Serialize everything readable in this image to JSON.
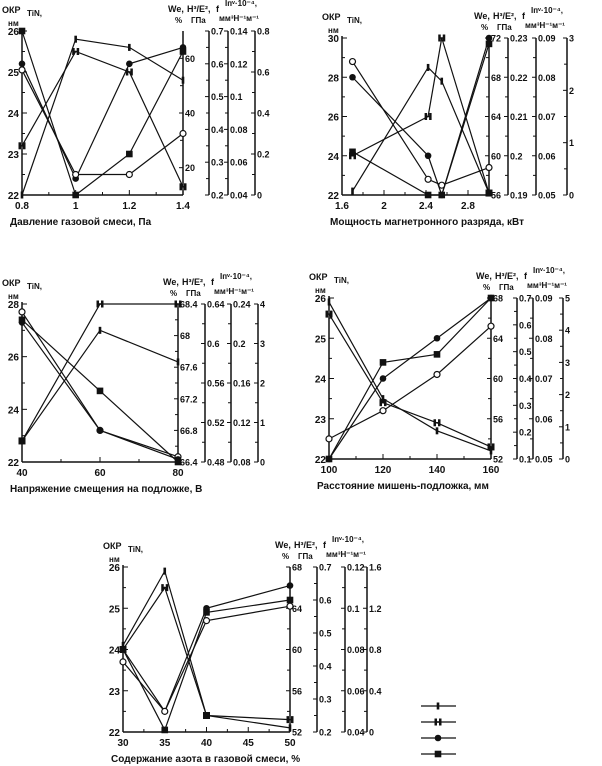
{
  "header_labels": {
    "okp": "ОКР",
    "okp_sub": "TiN,",
    "okp_unit": "нм",
    "we": "We,",
    "we_unit": "%",
    "h": "H³/E²,",
    "h_unit": "ГПа",
    "f": "f",
    "i": "Iпᵛ·10⁻⁴,",
    "i_unit": "мм³Н⁻¹м⁻¹"
  },
  "legend_markers": [
    "tick",
    "H",
    "filled-circle",
    "filled-square"
  ],
  "chart_data": [
    {
      "type": "line",
      "xlabel": "Давление газовой смеси, Па",
      "xlim": [
        0.8,
        1.4
      ],
      "xticks": [
        "0.8",
        "1",
        "1.2",
        "1.4"
      ],
      "ylim": [
        22,
        26
      ],
      "yticks": [
        "22",
        "23",
        "24",
        "25",
        "26"
      ],
      "right_axes": [
        {
          "name": "We",
          "lim": [
            10,
            70
          ],
          "ticks": [
            "20",
            "40",
            "60"
          ]
        },
        {
          "name": "H3/E2",
          "lim": [
            0.2,
            0.7
          ],
          "ticks": [
            "0.2",
            "0.3",
            "0.4",
            "0.5",
            "0.6",
            "0.7"
          ]
        },
        {
          "name": "f",
          "lim": [
            0.04,
            0.14
          ],
          "ticks": [
            "0.04",
            "0.06",
            "0.08",
            "0.1",
            "0.12",
            "0.14"
          ]
        },
        {
          "name": "Iv",
          "lim": [
            0,
            0.8
          ],
          "ticks": [
            "0",
            "0.2",
            "0.4",
            "0.6",
            "0.8"
          ]
        }
      ],
      "note": "series y values expressed on the left-axis (ОКР) scale",
      "series": [
        {
          "marker": "tick",
          "x": [
            0.8,
            1,
            1.2,
            1.4
          ],
          "y": [
            22.0,
            25.8,
            25.6,
            24.8
          ]
        },
        {
          "marker": "H",
          "x": [
            0.8,
            1,
            1.2,
            1.4
          ],
          "y": [
            23.2,
            25.5,
            25.0,
            22.2
          ]
        },
        {
          "marker": "filled-circle",
          "x": [
            0.8,
            1,
            1.2,
            1.4
          ],
          "y": [
            25.2,
            22.4,
            25.2,
            25.6
          ]
        },
        {
          "marker": "open-circle",
          "x": [
            0.8,
            1,
            1.2,
            1.4
          ],
          "y": [
            25.05,
            22.5,
            22.5,
            23.5
          ]
        },
        {
          "marker": "filled-square",
          "x": [
            0.8,
            1,
            1.2,
            1.4
          ],
          "y": [
            26.0,
            22.0,
            23.0,
            25.5
          ]
        }
      ]
    },
    {
      "type": "line",
      "xlabel": "Мощность магнетронного разряда, кВт",
      "xlim": [
        1.6,
        3.0
      ],
      "xticks": [
        "1.6",
        "2",
        "2.4",
        "2.8"
      ],
      "xtick_values": [
        1.6,
        2,
        2.4,
        2.8
      ],
      "ylim": [
        22,
        30
      ],
      "yticks": [
        "22",
        "24",
        "26",
        "28",
        "30"
      ],
      "right_axes": [
        {
          "name": "We",
          "lim": [
            56,
            72
          ],
          "ticks": [
            "56",
            "60",
            "64",
            "68",
            "72"
          ]
        },
        {
          "name": "H3/E2",
          "lim": [
            0.19,
            0.23
          ],
          "ticks": [
            "0.19",
            "0.2",
            "0.21",
            "0.22",
            "0.23"
          ]
        },
        {
          "name": "f",
          "lim": [
            0.05,
            0.09
          ],
          "ticks": [
            "0.05",
            "0.06",
            "0.07",
            "0.08",
            "0.09"
          ]
        },
        {
          "name": "Iv",
          "lim": [
            0,
            3
          ],
          "ticks": [
            "0",
            "1",
            "2",
            "3"
          ]
        }
      ],
      "series": [
        {
          "marker": "tick",
          "x": [
            1.7,
            2.42,
            2.55,
            3.0
          ],
          "y": [
            22.2,
            28.5,
            27.8,
            22.1
          ]
        },
        {
          "marker": "H",
          "x": [
            1.7,
            2.42,
            2.55,
            3.0
          ],
          "y": [
            24.0,
            26.0,
            30.0,
            22.1
          ]
        },
        {
          "marker": "filled-circle",
          "x": [
            1.7,
            2.42,
            2.55,
            3.0
          ],
          "y": [
            28.0,
            24.0,
            22.0,
            30.0
          ]
        },
        {
          "marker": "open-circle",
          "x": [
            1.7,
            2.42,
            2.55,
            3.0
          ],
          "y": [
            28.8,
            22.8,
            22.5,
            23.4
          ]
        },
        {
          "marker": "filled-square",
          "x": [
            1.7,
            2.42,
            2.55,
            3.0
          ],
          "y": [
            24.2,
            22.0,
            22.0,
            29.7
          ]
        }
      ]
    },
    {
      "type": "line",
      "xlabel": "Напряжение смещения на подложке, В",
      "xlim": [
        40,
        80
      ],
      "xticks": [
        "40",
        "60",
        "80"
      ],
      "ylim": [
        22,
        28
      ],
      "yticks": [
        "22",
        "24",
        "26",
        "28"
      ],
      "right_axes": [
        {
          "name": "We",
          "lim": [
            66.4,
            68.4
          ],
          "ticks": [
            "66.4",
            "66.8",
            "67.2",
            "67.6",
            "68",
            "68.4"
          ]
        },
        {
          "name": "H3/E2",
          "lim": [
            0.48,
            0.64
          ],
          "ticks": [
            "0.48",
            "0.52",
            "0.56",
            "0.6",
            "0.64"
          ]
        },
        {
          "name": "f",
          "lim": [
            0.08,
            0.24
          ],
          "ticks": [
            "0.08",
            "0.12",
            "0.16",
            "0.2",
            "0.24"
          ]
        },
        {
          "name": "Iv",
          "lim": [
            0,
            4
          ],
          "ticks": [
            "0",
            "1",
            "2",
            "3",
            "4"
          ]
        }
      ],
      "series": [
        {
          "marker": "H",
          "x": [
            40,
            60,
            80
          ],
          "y": [
            22.8,
            28.0,
            28.0
          ]
        },
        {
          "marker": "tick",
          "x": [
            40,
            60,
            80
          ],
          "y": [
            22.8,
            27.0,
            25.8
          ]
        },
        {
          "marker": "open-circle",
          "x": [
            40,
            60,
            80
          ],
          "y": [
            27.7,
            23.2,
            22.2
          ]
        },
        {
          "marker": "filled-circle",
          "x": [
            40,
            60,
            80
          ],
          "y": [
            27.3,
            23.2,
            22.1
          ]
        },
        {
          "marker": "filled-square",
          "x": [
            40,
            60,
            80
          ],
          "y": [
            27.4,
            24.7,
            22.0
          ]
        }
      ]
    },
    {
      "type": "line",
      "xlabel": "Расстояние мишень-подложка, мм",
      "xlim": [
        100,
        160
      ],
      "xticks": [
        "100",
        "120",
        "140",
        "160"
      ],
      "ylim": [
        22,
        26
      ],
      "yticks": [
        "22",
        "23",
        "24",
        "25",
        "26"
      ],
      "right_axes": [
        {
          "name": "We",
          "lim": [
            52,
            68
          ],
          "ticks": [
            "52",
            "56",
            "60",
            "64",
            "68"
          ]
        },
        {
          "name": "H3/E2",
          "lim": [
            0.1,
            0.7
          ],
          "ticks": [
            "0.1",
            "0.2",
            "0.3",
            "0.4",
            "0.5",
            "0.6",
            "0.7"
          ]
        },
        {
          "name": "f",
          "lim": [
            0.05,
            0.09
          ],
          "ticks": [
            "0.05",
            "0.06",
            "0.07",
            "0.08",
            "0.09"
          ]
        },
        {
          "name": "Iv",
          "lim": [
            0,
            5
          ],
          "ticks": [
            "0",
            "1",
            "2",
            "3",
            "4",
            "5"
          ]
        }
      ],
      "series": [
        {
          "marker": "tick",
          "x": [
            100,
            120,
            140,
            160
          ],
          "y": [
            25.9,
            23.5,
            22.7,
            22.2
          ]
        },
        {
          "marker": "H",
          "x": [
            100,
            120,
            140,
            160
          ],
          "y": [
            25.6,
            23.4,
            22.9,
            22.3
          ]
        },
        {
          "marker": "filled-circle",
          "x": [
            100,
            120,
            140,
            160
          ],
          "y": [
            22.0,
            24.0,
            25.0,
            26.0
          ]
        },
        {
          "marker": "filled-square",
          "x": [
            100,
            120,
            140,
            160
          ],
          "y": [
            22.0,
            24.4,
            24.6,
            26.0
          ]
        },
        {
          "marker": "open-circle",
          "x": [
            100,
            120,
            140,
            160
          ],
          "y": [
            22.5,
            23.2,
            24.1,
            25.3
          ]
        }
      ]
    },
    {
      "type": "line",
      "xlabel": "Содержание азота в газовой смеси, %",
      "xlim": [
        30,
        50
      ],
      "xticks": [
        "30",
        "35",
        "40",
        "45",
        "50"
      ],
      "ylim": [
        22,
        26
      ],
      "yticks": [
        "22",
        "23",
        "24",
        "25",
        "26"
      ],
      "right_axes": [
        {
          "name": "We",
          "lim": [
            52,
            68
          ],
          "ticks": [
            "52",
            "56",
            "60",
            "64",
            "68"
          ]
        },
        {
          "name": "H3/E2",
          "lim": [
            0.2,
            0.7
          ],
          "ticks": [
            "0.2",
            "0.3",
            "0.4",
            "0.5",
            "0.6",
            "0.7"
          ]
        },
        {
          "name": "f",
          "lim": [
            0.04,
            0.12
          ],
          "ticks": [
            "0.04",
            "0.06",
            "0.08",
            "0.1",
            "0.12"
          ]
        },
        {
          "name": "Iv",
          "lim": [
            0,
            1.6
          ],
          "ticks": [
            "0",
            "0.4",
            "0.8",
            "1.2",
            "1.6"
          ]
        }
      ],
      "series": [
        {
          "marker": "tick",
          "x": [
            30,
            35,
            40,
            50
          ],
          "y": [
            24.1,
            25.9,
            22.4,
            22.1
          ]
        },
        {
          "marker": "H",
          "x": [
            30,
            35,
            40,
            50
          ],
          "y": [
            24.0,
            25.5,
            22.4,
            22.3
          ]
        },
        {
          "marker": "filled-circle",
          "x": [
            30,
            35,
            40,
            50
          ],
          "y": [
            24.0,
            22.5,
            25.0,
            25.55
          ]
        },
        {
          "marker": "filled-square",
          "x": [
            30,
            35,
            40,
            50
          ],
          "y": [
            24.0,
            22.05,
            24.9,
            25.2
          ]
        },
        {
          "marker": "open-circle",
          "x": [
            30,
            35,
            40,
            50
          ],
          "y": [
            23.7,
            22.5,
            24.7,
            25.05
          ]
        }
      ]
    }
  ]
}
